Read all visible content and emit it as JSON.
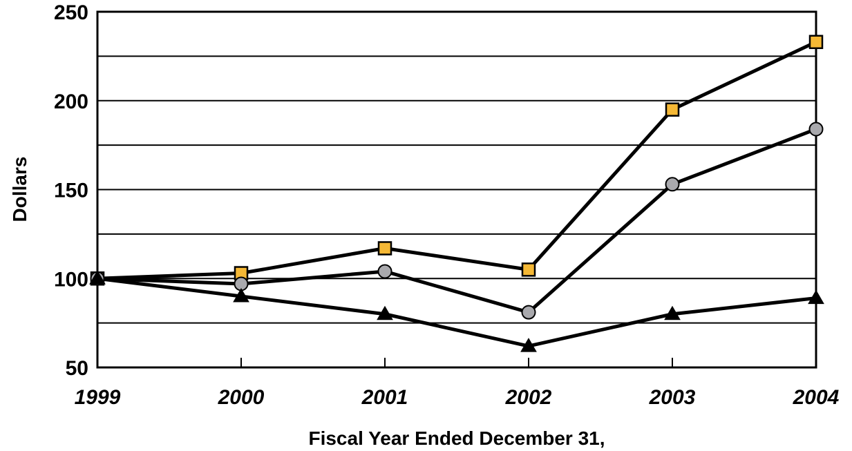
{
  "chart_data": {
    "type": "line",
    "title": "",
    "xlabel": "Fiscal Year Ended December 31,",
    "ylabel": "Dollars",
    "x": [
      "1999",
      "2000",
      "2001",
      "2002",
      "2003",
      "2004"
    ],
    "ylim": [
      50,
      250
    ],
    "y_ticks": [
      "250",
      "200",
      "150",
      "100",
      "50"
    ],
    "grid": "horizontal, every 25",
    "series": [
      {
        "marker": "square",
        "color": "#f5b835",
        "values": [
          100,
          103,
          117,
          105,
          195,
          233
        ]
      },
      {
        "marker": "circle",
        "color": "#a9a9ad",
        "values": [
          100,
          97,
          104,
          81,
          153,
          184
        ]
      },
      {
        "marker": "triangle",
        "color": "#000000",
        "values": [
          100,
          90,
          80,
          62,
          80,
          89
        ]
      }
    ]
  }
}
